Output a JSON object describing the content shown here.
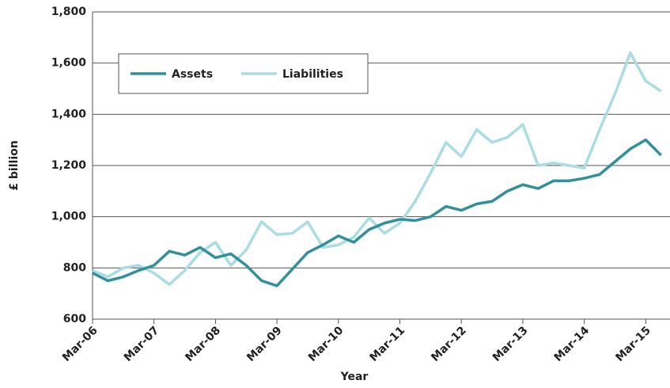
{
  "chart_data": {
    "type": "line",
    "x_label": "Year",
    "y_label": "£ billion",
    "categories": [
      "Mar-06",
      null,
      null,
      null,
      "Mar-07",
      null,
      null,
      null,
      "Mar-08",
      null,
      null,
      null,
      "Mar-09",
      null,
      null,
      null,
      "Mar-10",
      null,
      null,
      null,
      "Mar-11",
      null,
      null,
      null,
      "Mar-12",
      null,
      null,
      null,
      "Mar-13",
      null,
      null,
      null,
      "Mar-14",
      null,
      null,
      null,
      "Mar-15",
      null
    ],
    "series": [
      {
        "name": "Assets",
        "color": "#31909b",
        "values": [
          780,
          750,
          765,
          790,
          810,
          865,
          850,
          880,
          840,
          855,
          810,
          750,
          730,
          795,
          860,
          890,
          925,
          900,
          950,
          975,
          990,
          985,
          1000,
          1040,
          1025,
          1050,
          1060,
          1100,
          1125,
          1110,
          1140,
          1140,
          1150,
          1165,
          1215,
          1265,
          1300,
          1240
        ]
      },
      {
        "name": "Liabilities",
        "color": "#a9dde3",
        "values": [
          790,
          765,
          800,
          810,
          780,
          735,
          790,
          860,
          900,
          810,
          870,
          980,
          930,
          935,
          980,
          880,
          890,
          920,
          995,
          935,
          975,
          1060,
          1170,
          1290,
          1235,
          1340,
          1290,
          1310,
          1360,
          1200,
          1210,
          1200,
          1190,
          1340,
          1480,
          1640,
          1530,
          1490
        ]
      }
    ],
    "ylim": [
      600,
      1800
    ],
    "yticks": [
      600,
      800,
      {
        "value": 1000,
        "label": "1,000"
      },
      {
        "value": 1200,
        "label": "1,200"
      },
      {
        "value": 1400,
        "label": "1,400"
      },
      {
        "value": 1600,
        "label": "1,600"
      },
      {
        "value": 1800,
        "label": "1,800"
      }
    ],
    "grid": true,
    "legend": "top-left"
  }
}
